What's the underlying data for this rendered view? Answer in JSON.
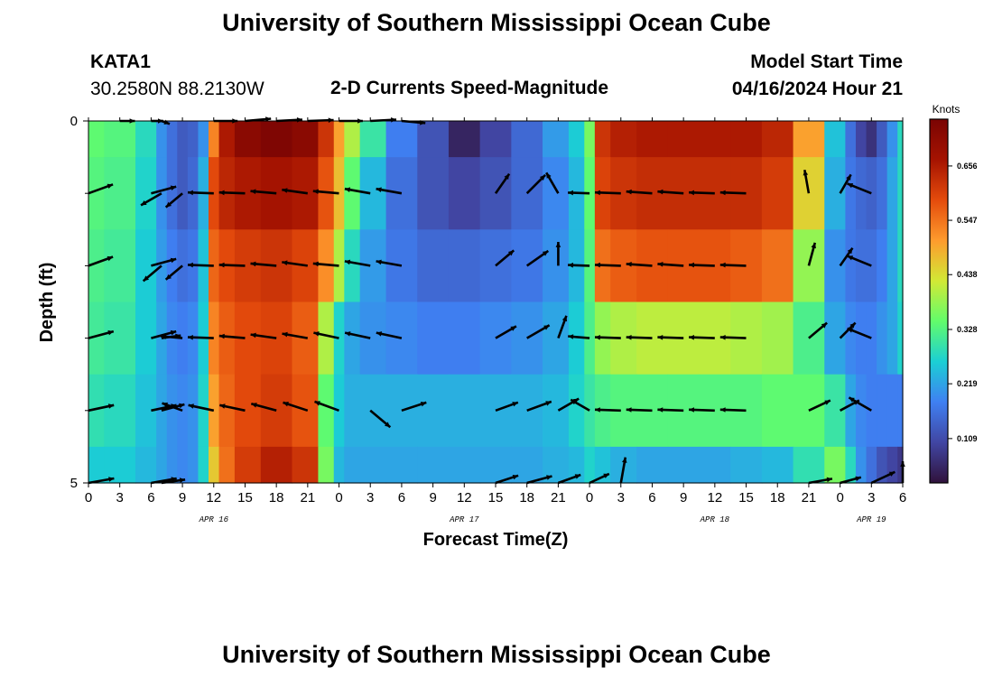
{
  "header": {
    "title": "University of Southern Mississippi Ocean Cube",
    "station": "KATA1",
    "coords": "30.2580N  88.2130W",
    "subtitle": "2-D Currents Speed-Magnitude",
    "model_start_label": "Model Start Time",
    "model_start_value": "04/16/2024 Hour 21"
  },
  "footer": {
    "title": "University of Southern Mississippi Ocean Cube"
  },
  "colors": {
    "scale": [
      "#30123b",
      "#4146a3",
      "#3f80f2",
      "#1bcfd4",
      "#62fc6b",
      "#d2e935",
      "#fe9b2d",
      "#e44b0c",
      "#a51301",
      "#7a0403"
    ]
  },
  "chart_data": {
    "type": "heatmap",
    "overlay": "vector arrows",
    "title": "2-D Currents Speed-Magnitude",
    "xlabel": "Forecast Time(Z)",
    "ylabel": "Depth (ft)",
    "colorbar": {
      "label": "Knots",
      "min": 0.02,
      "max": 0.75,
      "ticks": [
        "0.109",
        "0.219",
        "0.328",
        "0.438",
        "0.547",
        "0.656"
      ],
      "tick_values": [
        0.109,
        0.219,
        0.328,
        0.438,
        0.547,
        0.656
      ]
    },
    "x_ticks": [
      "0",
      "3",
      "6",
      "9",
      "12",
      "15",
      "18",
      "21",
      "0",
      "3",
      "6",
      "9",
      "12",
      "15",
      "18",
      "21",
      "0",
      "3",
      "6",
      "9",
      "12",
      "15",
      "18",
      "21",
      "0",
      "3",
      "6"
    ],
    "x_hours_range": [
      0,
      78
    ],
    "day_labels": [
      {
        "label": "APR 16",
        "hour": 12
      },
      {
        "label": "APR 17",
        "hour": 36
      },
      {
        "label": "APR 18",
        "hour": 60
      },
      {
        "label": "APR 19",
        "hour": 75
      }
    ],
    "y_ticks": [
      "0",
      "5"
    ],
    "ylim": [
      0,
      5
    ],
    "depth_rows": [
      0,
      1,
      2,
      3,
      4,
      5
    ],
    "speed_columns_hours": [
      0,
      3,
      6,
      7,
      8,
      9,
      10,
      11,
      12,
      13,
      15,
      18,
      21,
      23,
      24,
      25,
      27,
      30,
      33,
      36,
      39,
      42,
      45,
      47,
      48,
      49,
      51,
      54,
      57,
      60,
      63,
      66,
      69,
      72,
      73,
      74,
      75,
      76,
      77,
      78
    ],
    "speed_matrix": [
      [
        0.34,
        0.33,
        0.28,
        0.2,
        0.16,
        0.13,
        0.14,
        0.2,
        0.53,
        0.66,
        0.72,
        0.74,
        0.72,
        0.62,
        0.5,
        0.4,
        0.3,
        0.18,
        0.12,
        0.05,
        0.1,
        0.15,
        0.21,
        0.26,
        0.36,
        0.62,
        0.65,
        0.66,
        0.66,
        0.66,
        0.66,
        0.64,
        0.5,
        0.25,
        0.16,
        0.1,
        0.07,
        0.13,
        0.2,
        0.28
      ],
      [
        0.33,
        0.32,
        0.27,
        0.2,
        0.16,
        0.13,
        0.15,
        0.23,
        0.59,
        0.64,
        0.66,
        0.67,
        0.66,
        0.58,
        0.47,
        0.34,
        0.24,
        0.16,
        0.12,
        0.1,
        0.12,
        0.15,
        0.19,
        0.24,
        0.34,
        0.6,
        0.62,
        0.63,
        0.63,
        0.63,
        0.63,
        0.61,
        0.45,
        0.23,
        0.17,
        0.15,
        0.14,
        0.16,
        0.22,
        0.28
      ],
      [
        0.32,
        0.31,
        0.26,
        0.21,
        0.18,
        0.16,
        0.17,
        0.25,
        0.56,
        0.59,
        0.61,
        0.62,
        0.6,
        0.52,
        0.4,
        0.28,
        0.21,
        0.17,
        0.15,
        0.15,
        0.16,
        0.17,
        0.2,
        0.24,
        0.33,
        0.55,
        0.57,
        0.58,
        0.58,
        0.58,
        0.57,
        0.55,
        0.38,
        0.2,
        0.17,
        0.16,
        0.16,
        0.18,
        0.22,
        0.28
      ],
      [
        0.31,
        0.3,
        0.26,
        0.22,
        0.19,
        0.18,
        0.19,
        0.26,
        0.53,
        0.57,
        0.59,
        0.6,
        0.57,
        0.4,
        0.27,
        0.22,
        0.2,
        0.19,
        0.18,
        0.18,
        0.19,
        0.2,
        0.22,
        0.26,
        0.32,
        0.38,
        0.4,
        0.41,
        0.41,
        0.41,
        0.4,
        0.39,
        0.32,
        0.22,
        0.19,
        0.18,
        0.18,
        0.2,
        0.22,
        0.27
      ],
      [
        0.29,
        0.28,
        0.25,
        0.22,
        0.2,
        0.19,
        0.2,
        0.27,
        0.5,
        0.56,
        0.59,
        0.61,
        0.58,
        0.34,
        0.26,
        0.23,
        0.23,
        0.23,
        0.23,
        0.23,
        0.23,
        0.23,
        0.24,
        0.27,
        0.3,
        0.32,
        0.33,
        0.33,
        0.33,
        0.33,
        0.33,
        0.34,
        0.34,
        0.3,
        0.22,
        0.19,
        0.18,
        0.18,
        0.18,
        0.18
      ],
      [
        0.26,
        0.26,
        0.24,
        0.22,
        0.2,
        0.19,
        0.2,
        0.27,
        0.46,
        0.55,
        0.61,
        0.65,
        0.62,
        0.36,
        0.24,
        0.22,
        0.22,
        0.22,
        0.22,
        0.22,
        0.22,
        0.22,
        0.23,
        0.24,
        0.27,
        0.25,
        0.23,
        0.22,
        0.22,
        0.22,
        0.23,
        0.24,
        0.29,
        0.36,
        0.28,
        0.2,
        0.16,
        0.12,
        0.1,
        0.08
      ]
    ],
    "arrow_rows_depth": [
      0,
      1,
      2,
      3,
      4,
      5
    ],
    "arrow_columns_hours": [
      0,
      3,
      6,
      7,
      9,
      12,
      15,
      18,
      21,
      24,
      27,
      30,
      33,
      36,
      39,
      42,
      45,
      48,
      51,
      54,
      57,
      60,
      63,
      66,
      69,
      72,
      75,
      78
    ],
    "arrows": [
      [
        null,
        [
          0.35,
          0
        ],
        [
          0.28,
          0
        ],
        [
          0.2,
          -20
        ],
        null,
        [
          0.55,
          0
        ],
        [
          0.6,
          5
        ],
        [
          0.6,
          3
        ],
        [
          0.6,
          2
        ],
        [
          0.55,
          0
        ],
        [
          0.6,
          3
        ],
        [
          0.55,
          -5
        ],
        null,
        null,
        null,
        null,
        null,
        null,
        null,
        null,
        null,
        null,
        null,
        null,
        null,
        null,
        null,
        null
      ],
      [
        [
          0.6,
          20
        ],
        null,
        [
          0.6,
          15
        ],
        [
          0.55,
          -150
        ],
        [
          0.5,
          -140
        ],
        [
          0.6,
          178
        ],
        [
          0.6,
          178
        ],
        [
          0.6,
          175
        ],
        [
          0.6,
          172
        ],
        [
          0.6,
          175
        ],
        [
          0.6,
          170
        ],
        [
          0.6,
          170
        ],
        null,
        null,
        [
          0.55,
          55
        ],
        [
          0.6,
          45
        ],
        [
          0.55,
          120
        ],
        [
          0.5,
          178
        ],
        [
          0.6,
          178
        ],
        [
          0.6,
          176
        ],
        [
          0.6,
          176
        ],
        [
          0.6,
          178
        ],
        [
          0.6,
          178
        ],
        null,
        [
          0.55,
          100
        ],
        [
          0.5,
          60
        ],
        [
          0.6,
          158
        ],
        null
      ],
      [
        [
          0.6,
          20
        ],
        null,
        [
          0.6,
          15
        ],
        [
          0.55,
          -140
        ],
        [
          0.5,
          -140
        ],
        [
          0.6,
          178
        ],
        [
          0.6,
          178
        ],
        [
          0.6,
          175
        ],
        [
          0.6,
          172
        ],
        [
          0.6,
          175
        ],
        [
          0.6,
          170
        ],
        [
          0.6,
          170
        ],
        null,
        null,
        [
          0.55,
          40
        ],
        [
          0.6,
          35
        ],
        [
          0.55,
          90
        ],
        [
          0.5,
          178
        ],
        [
          0.6,
          178
        ],
        [
          0.6,
          176
        ],
        [
          0.6,
          176
        ],
        [
          0.6,
          178
        ],
        [
          0.6,
          178
        ],
        null,
        [
          0.55,
          75
        ],
        [
          0.5,
          55
        ],
        [
          0.6,
          158
        ],
        null
      ],
      [
        [
          0.6,
          15
        ],
        null,
        [
          0.6,
          15
        ],
        [
          0.45,
          8
        ],
        [
          0.5,
          175
        ],
        [
          0.6,
          178
        ],
        [
          0.6,
          175
        ],
        [
          0.6,
          172
        ],
        [
          0.6,
          170
        ],
        [
          0.6,
          168
        ],
        [
          0.6,
          168
        ],
        [
          0.6,
          168
        ],
        null,
        null,
        [
          0.55,
          30
        ],
        [
          0.6,
          30
        ],
        [
          0.55,
          70
        ],
        [
          0.5,
          175
        ],
        [
          0.6,
          178
        ],
        [
          0.6,
          178
        ],
        [
          0.6,
          178
        ],
        [
          0.6,
          178
        ],
        [
          0.6,
          178
        ],
        null,
        [
          0.55,
          40
        ],
        [
          0.5,
          45
        ],
        [
          0.6,
          158
        ],
        null
      ],
      [
        [
          0.6,
          12
        ],
        null,
        [
          0.6,
          12
        ],
        [
          0.55,
          15
        ],
        [
          0.5,
          160
        ],
        [
          0.6,
          168
        ],
        [
          0.6,
          168
        ],
        [
          0.6,
          165
        ],
        [
          0.6,
          162
        ],
        [
          0.6,
          160
        ],
        [
          0.6,
          -40
        ],
        [
          0.6,
          18
        ],
        null,
        null,
        [
          0.55,
          20
        ],
        [
          0.6,
          20
        ],
        [
          0.55,
          30
        ],
        [
          0.5,
          150
        ],
        [
          0.6,
          178
        ],
        [
          0.6,
          178
        ],
        [
          0.6,
          178
        ],
        [
          0.6,
          178
        ],
        [
          0.6,
          178
        ],
        null,
        [
          0.55,
          25
        ],
        [
          0.5,
          28
        ],
        [
          0.6,
          150
        ],
        null
      ],
      [
        [
          0.6,
          10
        ],
        null,
        [
          0.6,
          10
        ],
        [
          0.55,
          8
        ],
        null,
        null,
        null,
        null,
        null,
        null,
        null,
        null,
        null,
        null,
        [
          0.55,
          18
        ],
        [
          0.6,
          15
        ],
        [
          0.55,
          20
        ],
        [
          0.5,
          25
        ],
        [
          0.6,
          80
        ],
        null,
        null,
        null,
        null,
        null,
        [
          0.55,
          10
        ],
        [
          0.5,
          15
        ],
        [
          0.6,
          25
        ],
        [
          0.5,
          90
        ]
      ]
    ]
  }
}
